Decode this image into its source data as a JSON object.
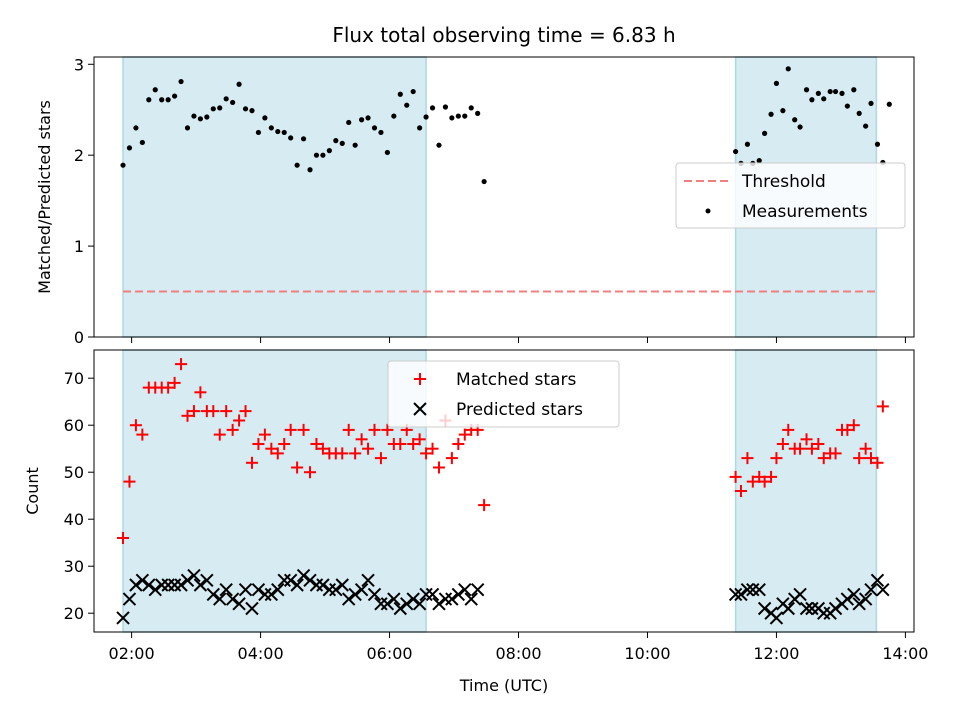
{
  "chart_data": [
    {
      "type": "scatter",
      "title": "Flux total observing time = 6.83 h",
      "xlabel": "",
      "ylabel": "Matched/Predicted stars",
      "xlim": [
        "01:25",
        "14:08"
      ],
      "ylim": [
        0,
        3.08
      ],
      "yticks": [
        0,
        1,
        2,
        3
      ],
      "grid": false,
      "legend_position": "center-right",
      "shaded_windows": [
        [
          "01:52",
          "06:34"
        ],
        [
          "11:22",
          "13:33"
        ]
      ],
      "shade_color": "#add8e6",
      "threshold": {
        "name": "Threshold",
        "value": 0.5,
        "color": "#f08080",
        "x_range": [
          "01:52",
          "13:33"
        ]
      },
      "series": [
        {
          "name": "Measurements",
          "color": "#000000",
          "points": [
            [
              "01:52",
              1.89
            ],
            [
              "01:58",
              2.08
            ],
            [
              "02:04",
              2.3
            ],
            [
              "02:10",
              2.14
            ],
            [
              "02:16",
              2.61
            ],
            [
              "02:22",
              2.72
            ],
            [
              "02:28",
              2.61
            ],
            [
              "02:34",
              2.61
            ],
            [
              "02:40",
              2.65
            ],
            [
              "02:46",
              2.81
            ],
            [
              "02:52",
              2.3
            ],
            [
              "02:58",
              2.43
            ],
            [
              "03:04",
              2.4
            ],
            [
              "03:10",
              2.42
            ],
            [
              "03:16",
              2.51
            ],
            [
              "03:22",
              2.52
            ],
            [
              "03:28",
              2.62
            ],
            [
              "03:34",
              2.58
            ],
            [
              "03:40",
              2.78
            ],
            [
              "03:46",
              2.51
            ],
            [
              "03:52",
              2.49
            ],
            [
              "03:58",
              2.25
            ],
            [
              "04:04",
              2.41
            ],
            [
              "04:10",
              2.3
            ],
            [
              "04:16",
              2.26
            ],
            [
              "04:22",
              2.25
            ],
            [
              "04:28",
              2.19
            ],
            [
              "04:34",
              1.89
            ],
            [
              "04:40",
              2.18
            ],
            [
              "04:46",
              1.84
            ],
            [
              "04:52",
              2.0
            ],
            [
              "04:58",
              2.0
            ],
            [
              "05:04",
              2.05
            ],
            [
              "05:10",
              2.16
            ],
            [
              "05:16",
              2.13
            ],
            [
              "05:22",
              2.36
            ],
            [
              "05:28",
              2.11
            ],
            [
              "05:34",
              2.39
            ],
            [
              "05:40",
              2.41
            ],
            [
              "05:46",
              2.3
            ],
            [
              "05:52",
              2.25
            ],
            [
              "05:58",
              2.03
            ],
            [
              "06:04",
              2.43
            ],
            [
              "06:10",
              2.67
            ],
            [
              "06:16",
              2.55
            ],
            [
              "06:22",
              2.7
            ],
            [
              "06:28",
              2.3
            ],
            [
              "06:34",
              2.42
            ],
            [
              "06:40",
              2.52
            ],
            [
              "06:46",
              2.11
            ],
            [
              "06:52",
              2.53
            ],
            [
              "06:58",
              2.41
            ],
            [
              "07:04",
              2.43
            ],
            [
              "07:10",
              2.43
            ],
            [
              "07:16",
              2.52
            ],
            [
              "07:22",
              2.46
            ],
            [
              "07:28",
              1.71
            ],
            [
              "11:22",
              2.04
            ],
            [
              "11:27",
              1.91
            ],
            [
              "11:33",
              2.12
            ],
            [
              "11:38",
              1.91
            ],
            [
              "11:44",
              1.94
            ],
            [
              "11:49",
              2.24
            ],
            [
              "11:55",
              2.45
            ],
            [
              "12:00",
              2.79
            ],
            [
              "12:06",
              2.49
            ],
            [
              "12:11",
              2.95
            ],
            [
              "12:17",
              2.39
            ],
            [
              "12:22",
              2.31
            ],
            [
              "12:28",
              2.72
            ],
            [
              "12:33",
              2.61
            ],
            [
              "12:39",
              2.68
            ],
            [
              "12:44",
              2.62
            ],
            [
              "12:50",
              2.7
            ],
            [
              "12:55",
              2.7
            ],
            [
              "13:01",
              2.68
            ],
            [
              "13:06",
              2.54
            ],
            [
              "13:12",
              2.72
            ],
            [
              "13:17",
              2.46
            ],
            [
              "13:23",
              2.32
            ],
            [
              "13:28",
              2.57
            ],
            [
              "13:34",
              2.12
            ],
            [
              "13:39",
              1.92
            ],
            [
              "13:45",
              2.56
            ]
          ]
        }
      ]
    },
    {
      "type": "scatter",
      "title": "",
      "xlabel": "Time (UTC)",
      "ylabel": "Count",
      "xlim": [
        "01:25",
        "14:08"
      ],
      "ylim": [
        16,
        76
      ],
      "yticks": [
        20,
        30,
        40,
        50,
        60,
        70
      ],
      "xticks": [
        "02:00",
        "04:00",
        "06:00",
        "08:00",
        "10:00",
        "12:00",
        "14:00"
      ],
      "grid": false,
      "legend_position": "upper-center",
      "shaded_windows": [
        [
          "01:52",
          "06:34"
        ],
        [
          "11:22",
          "13:33"
        ]
      ],
      "series": [
        {
          "name": "Matched stars",
          "marker": "plus",
          "color": "#ff0000",
          "points": [
            [
              "01:52",
              36
            ],
            [
              "01:58",
              48
            ],
            [
              "02:04",
              60
            ],
            [
              "02:10",
              58
            ],
            [
              "02:16",
              68
            ],
            [
              "02:22",
              68
            ],
            [
              "02:28",
              68
            ],
            [
              "02:34",
              68
            ],
            [
              "02:40",
              69
            ],
            [
              "02:46",
              73
            ],
            [
              "02:52",
              62
            ],
            [
              "02:58",
              63
            ],
            [
              "03:04",
              67
            ],
            [
              "03:10",
              63
            ],
            [
              "03:16",
              63
            ],
            [
              "03:22",
              58
            ],
            [
              "03:28",
              63
            ],
            [
              "03:34",
              59
            ],
            [
              "03:40",
              61
            ],
            [
              "03:46",
              63
            ],
            [
              "03:52",
              52
            ],
            [
              "03:58",
              56
            ],
            [
              "04:04",
              58
            ],
            [
              "04:10",
              55
            ],
            [
              "04:16",
              54
            ],
            [
              "04:22",
              56
            ],
            [
              "04:28",
              59
            ],
            [
              "04:34",
              51
            ],
            [
              "04:40",
              59
            ],
            [
              "04:46",
              50
            ],
            [
              "04:52",
              56
            ],
            [
              "04:58",
              55
            ],
            [
              "05:04",
              54
            ],
            [
              "05:10",
              54
            ],
            [
              "05:16",
              54
            ],
            [
              "05:22",
              59
            ],
            [
              "05:28",
              54
            ],
            [
              "05:34",
              57
            ],
            [
              "05:40",
              55
            ],
            [
              "05:46",
              59
            ],
            [
              "05:52",
              53
            ],
            [
              "05:58",
              59
            ],
            [
              "06:04",
              56
            ],
            [
              "06:10",
              56
            ],
            [
              "06:16",
              59
            ],
            [
              "06:22",
              56
            ],
            [
              "06:28",
              57
            ],
            [
              "06:34",
              54
            ],
            [
              "06:40",
              55
            ],
            [
              "06:46",
              51
            ],
            [
              "06:52",
              61
            ],
            [
              "06:58",
              53
            ],
            [
              "07:04",
              56
            ],
            [
              "07:10",
              58
            ],
            [
              "07:16",
              59
            ],
            [
              "07:22",
              59
            ],
            [
              "07:28",
              43
            ],
            [
              "11:22",
              49
            ],
            [
              "11:27",
              46
            ],
            [
              "11:33",
              53
            ],
            [
              "11:38",
              48
            ],
            [
              "11:44",
              49
            ],
            [
              "11:49",
              48
            ],
            [
              "11:55",
              49
            ],
            [
              "12:00",
              53
            ],
            [
              "12:06",
              56
            ],
            [
              "12:11",
              59
            ],
            [
              "12:17",
              55
            ],
            [
              "12:22",
              55
            ],
            [
              "12:28",
              57
            ],
            [
              "12:33",
              55
            ],
            [
              "12:39",
              56
            ],
            [
              "12:44",
              53
            ],
            [
              "12:50",
              54
            ],
            [
              "12:55",
              54
            ],
            [
              "13:01",
              59
            ],
            [
              "13:06",
              59
            ],
            [
              "13:12",
              60
            ],
            [
              "13:17",
              53
            ],
            [
              "13:23",
              55
            ],
            [
              "13:28",
              53
            ],
            [
              "13:34",
              52
            ],
            [
              "13:39",
              64
            ]
          ]
        },
        {
          "name": "Predicted stars",
          "marker": "x",
          "color": "#000000",
          "points": [
            [
              "01:52",
              19
            ],
            [
              "01:58",
              23
            ],
            [
              "02:04",
              26
            ],
            [
              "02:10",
              27
            ],
            [
              "02:16",
              26
            ],
            [
              "02:22",
              25
            ],
            [
              "02:28",
              26
            ],
            [
              "02:34",
              26
            ],
            [
              "02:40",
              26
            ],
            [
              "02:46",
              26
            ],
            [
              "02:52",
              27
            ],
            [
              "02:58",
              28
            ],
            [
              "03:04",
              26
            ],
            [
              "03:10",
              27
            ],
            [
              "03:16",
              24
            ],
            [
              "03:22",
              23
            ],
            [
              "03:28",
              25
            ],
            [
              "03:34",
              23
            ],
            [
              "03:40",
              22
            ],
            [
              "03:46",
              25
            ],
            [
              "03:52",
              21
            ],
            [
              "03:58",
              25
            ],
            [
              "04:04",
              24
            ],
            [
              "04:10",
              24
            ],
            [
              "04:16",
              25
            ],
            [
              "04:22",
              27
            ],
            [
              "04:28",
              27
            ],
            [
              "04:34",
              26
            ],
            [
              "04:40",
              28
            ],
            [
              "04:46",
              27
            ],
            [
              "04:52",
              26
            ],
            [
              "04:58",
              26
            ],
            [
              "05:04",
              25
            ],
            [
              "05:10",
              25
            ],
            [
              "05:16",
              26
            ],
            [
              "05:22",
              23
            ],
            [
              "05:28",
              24
            ],
            [
              "05:34",
              25
            ],
            [
              "05:40",
              27
            ],
            [
              "05:46",
              24
            ],
            [
              "05:52",
              22
            ],
            [
              "05:58",
              22
            ],
            [
              "06:04",
              23
            ],
            [
              "06:10",
              21
            ],
            [
              "06:16",
              22
            ],
            [
              "06:22",
              23
            ],
            [
              "06:28",
              22
            ],
            [
              "06:34",
              24
            ],
            [
              "06:40",
              24
            ],
            [
              "06:46",
              22
            ],
            [
              "06:52",
              23
            ],
            [
              "06:58",
              23
            ],
            [
              "07:04",
              24
            ],
            [
              "07:10",
              25
            ],
            [
              "07:16",
              23
            ],
            [
              "07:22",
              25
            ],
            [
              "11:22",
              24
            ],
            [
              "11:27",
              24
            ],
            [
              "11:33",
              25
            ],
            [
              "11:38",
              25
            ],
            [
              "11:44",
              25
            ],
            [
              "11:49",
              21
            ],
            [
              "11:55",
              20
            ],
            [
              "12:00",
              19
            ],
            [
              "12:06",
              22
            ],
            [
              "12:11",
              21
            ],
            [
              "12:17",
              23
            ],
            [
              "12:22",
              24
            ],
            [
              "12:28",
              21
            ],
            [
              "12:33",
              21
            ],
            [
              "12:39",
              21
            ],
            [
              "12:44",
              20
            ],
            [
              "12:50",
              20
            ],
            [
              "12:55",
              21
            ],
            [
              "13:01",
              22
            ],
            [
              "13:06",
              23
            ],
            [
              "13:12",
              24
            ],
            [
              "13:17",
              22
            ],
            [
              "13:23",
              23
            ],
            [
              "13:28",
              25
            ],
            [
              "13:34",
              27
            ],
            [
              "13:39",
              25
            ]
          ]
        }
      ]
    }
  ]
}
